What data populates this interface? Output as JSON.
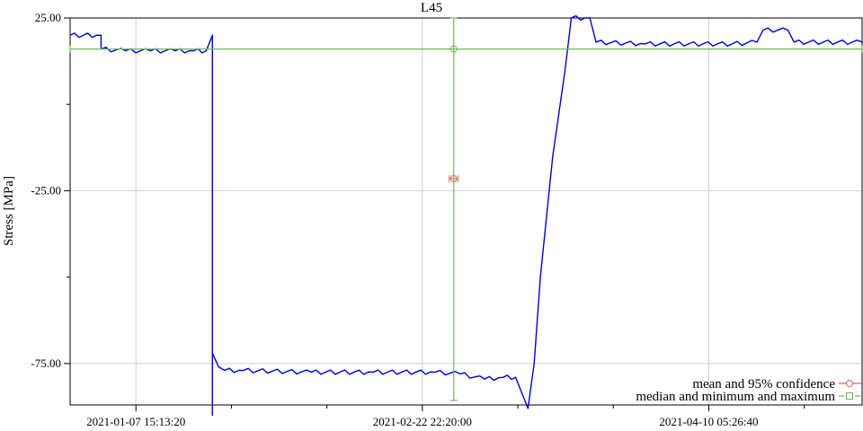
{
  "chart_data": {
    "type": "line",
    "title": "L45",
    "xlabel": "",
    "ylabel": "Stress [MPa]",
    "x_ticks": [
      "2021-01-07 15:13:20",
      "2021-02-22 22:20:00",
      "2021-04-10 05:26:40"
    ],
    "y_ticks": [
      "25.00",
      "-25.00",
      "-75.00"
    ],
    "xlim": [
      "2020-12-28",
      "2021-05-05"
    ],
    "ylim": [
      -87,
      25
    ],
    "grid": true,
    "legend_position": "bottom-right",
    "series": [
      {
        "color": "#0000dd",
        "x": [
          "2020-12-28",
          "2021-01-02",
          "2021-01-02",
          "2021-01-06",
          "2021-01-10",
          "2021-01-14",
          "2021-01-17",
          "2021-01-19",
          "2021-01-20",
          "2021-01-20",
          "2021-01-20",
          "2021-01-21",
          "2021-01-22",
          "2021-01-25",
          "2021-02-05",
          "2021-02-15",
          "2021-02-25",
          "2021-03-01",
          "2021-03-05",
          "2021-03-08",
          "2021-03-10",
          "2021-03-12",
          "2021-03-13",
          "2021-03-14",
          "2021-03-16",
          "2021-03-18",
          "2021-03-19",
          "2021-03-22",
          "2021-03-23",
          "2021-03-31",
          "2021-04-14",
          "2021-04-18",
          "2021-04-19",
          "2021-04-23",
          "2021-04-24",
          "2021-05-05"
        ],
        "y": [
          20,
          20,
          16,
          15.5,
          15.5,
          15.5,
          15.5,
          15.5,
          20,
          -90,
          -72,
          -76,
          -77,
          -77,
          -77.5,
          -77.5,
          -77.5,
          -78,
          -79.5,
          -79,
          -79,
          -88,
          -75,
          -50,
          -15,
          10,
          25,
          25,
          18,
          17.5,
          17.5,
          18,
          21.5,
          21.5,
          18,
          18
        ]
      }
    ],
    "summary_markers": [
      {
        "name": "mean and 95% confidence",
        "color": "#e06060",
        "x": "2021-02-28",
        "y": -21.5
      },
      {
        "name": "median and minimum and maximum",
        "color": "#6aba5a",
        "x": "2021-02-28",
        "y": 16
      }
    ]
  }
}
